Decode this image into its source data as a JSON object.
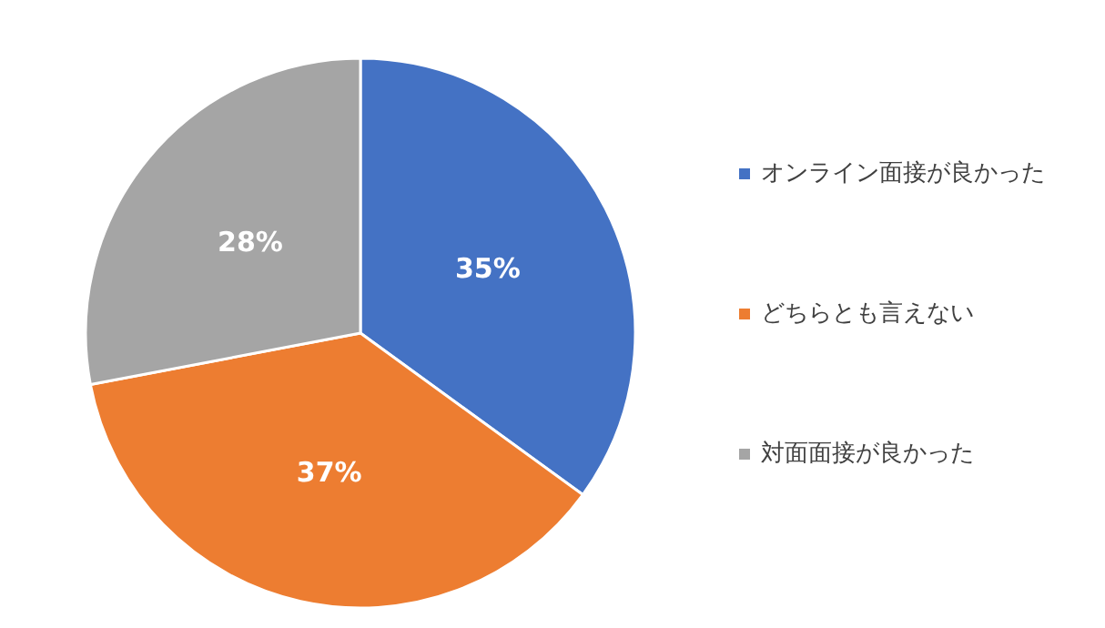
{
  "chart_data": {
    "type": "pie",
    "categories": [
      "オンライン面接が良かった",
      "どちらとも言えない",
      "対面面接が良かった"
    ],
    "values": [
      35,
      37,
      28
    ],
    "colors": [
      "#4472c4",
      "#ed7d31",
      "#a5a5a5"
    ],
    "value_labels": [
      "35%",
      "37%",
      "28%"
    ],
    "legend": "right"
  }
}
